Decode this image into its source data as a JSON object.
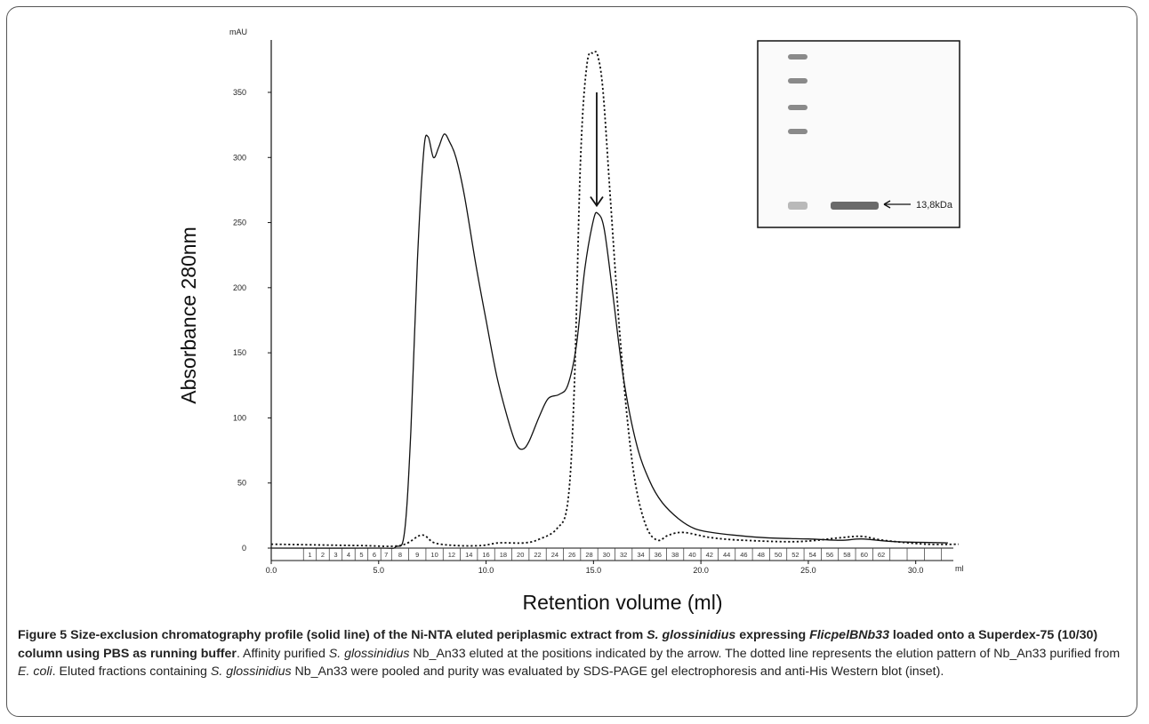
{
  "chart_data": {
    "type": "line",
    "ylabel": "Absorbance 280nm",
    "yunit": "mAU",
    "xlabel": "Retention volume (ml)",
    "xunit": "ml",
    "xlim": [
      0.0,
      32.0
    ],
    "ylim": [
      0,
      380
    ],
    "xticks": [
      {
        "value": 0.0,
        "label": "0.0"
      },
      {
        "value": 5.0,
        "label": "5.0"
      },
      {
        "value": 10.0,
        "label": "10.0"
      },
      {
        "value": 15.0,
        "label": "15.0"
      },
      {
        "value": 20.0,
        "label": "20.0"
      },
      {
        "value": 25.0,
        "label": "25.0"
      },
      {
        "value": 30.0,
        "label": "30.0"
      }
    ],
    "yticks": [
      0,
      50,
      100,
      150,
      200,
      250,
      300,
      350
    ],
    "fractions": {
      "boundaries": [
        0.0,
        1.5,
        2.1,
        2.7,
        3.3,
        3.9,
        4.5,
        5.1,
        5.6,
        6.4,
        7.2,
        8.0,
        8.8,
        9.6,
        10.4,
        11.2,
        12.0,
        12.8,
        13.6,
        14.4,
        15.2,
        16.0,
        16.8,
        17.6,
        18.4,
        19.2,
        20.0,
        20.8,
        21.6,
        22.4,
        23.2,
        24.0,
        24.8,
        25.6,
        26.4,
        27.2,
        28.0,
        28.8,
        29.6,
        30.4,
        31.2,
        32.0
      ],
      "labels": [
        "",
        "1",
        "2",
        "3",
        "4",
        "5",
        "6",
        "7",
        "8",
        "9",
        "10",
        "12",
        "14",
        "16",
        "18",
        "20",
        "22",
        "24",
        "26",
        "28",
        "30",
        "32",
        "34",
        "36",
        "38",
        "40",
        "42",
        "44",
        "46",
        "48",
        "50",
        "52",
        "54",
        "56",
        "58",
        "60",
        "62",
        "",
        "",
        "",
        ""
      ]
    },
    "series": [
      {
        "style": "solid",
        "points": [
          [
            0,
            0
          ],
          [
            5.0,
            0
          ],
          [
            5.8,
            1
          ],
          [
            6.2,
            12
          ],
          [
            6.5,
            90
          ],
          [
            6.8,
            220
          ],
          [
            7.1,
            305
          ],
          [
            7.3,
            316
          ],
          [
            7.55,
            300
          ],
          [
            7.8,
            308
          ],
          [
            8.05,
            318
          ],
          [
            8.3,
            312
          ],
          [
            8.6,
            300
          ],
          [
            9.0,
            270
          ],
          [
            9.5,
            220
          ],
          [
            10.0,
            175
          ],
          [
            10.5,
            132
          ],
          [
            11.0,
            100
          ],
          [
            11.4,
            80
          ],
          [
            11.7,
            76
          ],
          [
            12.0,
            82
          ],
          [
            12.5,
            102
          ],
          [
            12.9,
            115
          ],
          [
            13.4,
            118
          ],
          [
            13.8,
            125
          ],
          [
            14.2,
            155
          ],
          [
            14.6,
            215
          ],
          [
            15.0,
            252
          ],
          [
            15.2,
            257
          ],
          [
            15.5,
            245
          ],
          [
            15.9,
            195
          ],
          [
            16.4,
            130
          ],
          [
            17.0,
            80
          ],
          [
            17.6,
            52
          ],
          [
            18.2,
            35
          ],
          [
            19.0,
            22
          ],
          [
            19.7,
            15
          ],
          [
            20.5,
            12
          ],
          [
            21.5,
            10
          ],
          [
            23.0,
            8
          ],
          [
            25.0,
            7
          ],
          [
            26.5,
            6
          ],
          [
            27.5,
            7
          ],
          [
            29.0,
            5
          ],
          [
            31.5,
            4
          ]
        ]
      },
      {
        "style": "dotted",
        "points": [
          [
            0,
            3
          ],
          [
            4.0,
            2
          ],
          [
            6.0,
            2
          ],
          [
            7.0,
            10
          ],
          [
            7.6,
            4
          ],
          [
            8.6,
            2
          ],
          [
            9.8,
            2
          ],
          [
            10.6,
            4
          ],
          [
            11.8,
            4
          ],
          [
            12.5,
            7
          ],
          [
            13.3,
            15
          ],
          [
            13.8,
            35
          ],
          [
            14.1,
            120
          ],
          [
            14.4,
            300
          ],
          [
            14.7,
            372
          ],
          [
            15.0,
            380
          ],
          [
            15.2,
            378
          ],
          [
            15.45,
            350
          ],
          [
            15.8,
            265
          ],
          [
            16.2,
            170
          ],
          [
            16.6,
            95
          ],
          [
            17.0,
            45
          ],
          [
            17.5,
            15
          ],
          [
            18.0,
            6
          ],
          [
            18.5,
            10
          ],
          [
            19.2,
            12
          ],
          [
            20.5,
            8
          ],
          [
            22.0,
            6
          ],
          [
            24.5,
            5
          ],
          [
            26.5,
            8
          ],
          [
            27.5,
            9
          ],
          [
            28.5,
            6
          ],
          [
            30.5,
            3
          ],
          [
            32.0,
            3
          ]
        ]
      }
    ],
    "annotations": [
      {
        "type": "arrow-down",
        "x": 15.15,
        "label": ""
      }
    ]
  },
  "inset": {
    "band_label": "13,8kDa",
    "ladder_band_count": 5
  },
  "caption": {
    "figure_label": "Figure 5",
    "title_part1": " Size-exclusion chromatography profile (solid line) of the Ni-NTA eluted periplasmic extract from ",
    "title_species": "S. glossinidius",
    "title_part2": " expressing ",
    "title_construct": "FlicpelBNb33",
    "title_part3": " loaded onto a Superdex-75 (10/30) column using PBS as running buffer",
    "body_part1": ". Affinity purified ",
    "body_species1": "S. glossinidius",
    "body_part2": " Nb_An33 eluted at the positions indicated by the arrow. The dotted line represents the elution pattern of Nb_An33 purified from ",
    "body_ecoli": "E. coli",
    "body_part3": ". Eluted fractions containing ",
    "body_species2": "S. glossinidius",
    "body_part4": " Nb_An33 were pooled and purity was evaluated by SDS-PAGE gel electrophoresis and anti-His Western blot (inset)."
  }
}
